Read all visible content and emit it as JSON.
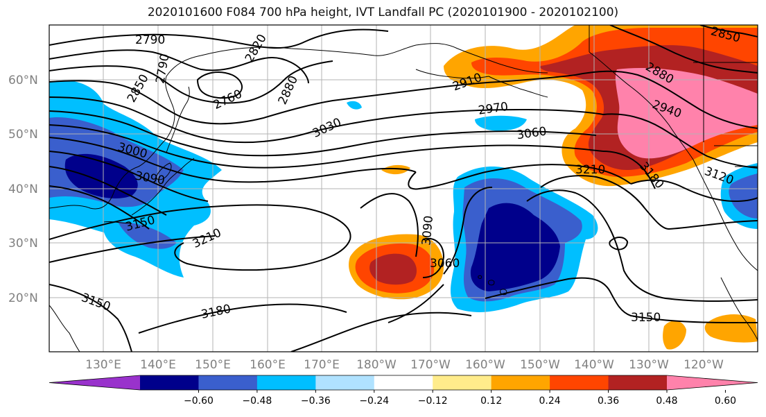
{
  "title": "2020101600 F084 700 hPa height, IVT Landfall PC (2020101900 - 2020102100)",
  "map": {
    "lat_labels": [
      "60°N",
      "50°N",
      "40°N",
      "30°N",
      "20°N"
    ],
    "lon_labels": [
      "130°E",
      "140°E",
      "150°E",
      "160°E",
      "170°E",
      "180°W",
      "170°W",
      "160°W",
      "150°W",
      "140°W",
      "130°W",
      "120°W"
    ],
    "contour_labels": [
      "2790",
      "2820",
      "2760",
      "2790",
      "2850",
      "2880",
      "3030",
      "2910",
      "2970",
      "3060",
      "2880",
      "2850",
      "2940",
      "3000",
      "3090",
      "3150",
      "3210",
      "3210",
      "3180",
      "3120",
      "3090",
      "3060",
      "3150",
      "3180",
      "3150"
    ]
  },
  "colorbar": {
    "ticks": [
      "−0.60",
      "−0.48",
      "−0.36",
      "−0.24",
      "−0.12",
      "0.12",
      "0.24",
      "0.36",
      "0.48",
      "0.60"
    ],
    "colors": [
      "#9932cc",
      "#00008b",
      "#3a5fcd",
      "#00bfff",
      "#b0e2ff",
      "#ffffff",
      "#ffec8b",
      "#ffa500",
      "#ff4500",
      "#b22222",
      "#ff82ab"
    ]
  }
}
